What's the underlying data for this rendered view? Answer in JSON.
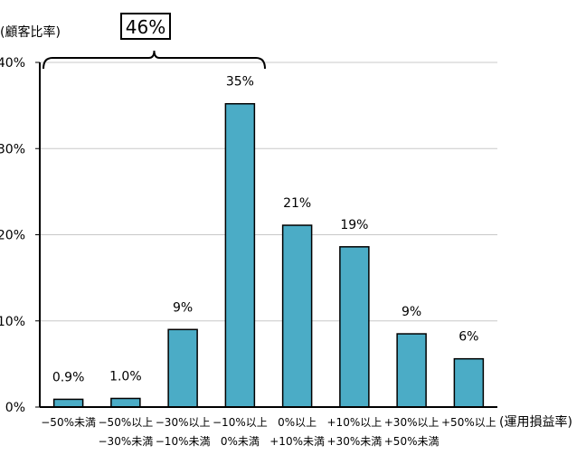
{
  "chart_data": {
    "type": "bar",
    "ylabel": "(顧客比率)",
    "xlabel": "(運用損益率)",
    "ylim": [
      0,
      40
    ],
    "yticks": [
      "0%",
      "10%",
      "20%",
      "30%",
      "40%"
    ],
    "categories": [
      [
        "−50%未満",
        ""
      ],
      [
        "−50%以上",
        "−30%未満"
      ],
      [
        "−30%以上",
        "−10%未満"
      ],
      [
        "−10%以上",
        "0%未満"
      ],
      [
        "0%以上",
        "+10%未満"
      ],
      [
        "+10%以上",
        "+30%未満"
      ],
      [
        "+30%以上",
        "+50%未満"
      ],
      [
        "+50%以上",
        ""
      ]
    ],
    "values": [
      0.9,
      1.0,
      9,
      35,
      21,
      19,
      9,
      6
    ],
    "display_values": [
      0.9,
      1.0,
      9.0,
      35.2,
      21.1,
      18.6,
      8.5,
      5.6
    ],
    "data_labels": [
      "0.9%",
      "1.0%",
      "9%",
      "35%",
      "21%",
      "19%",
      "9%",
      "6%"
    ],
    "bracket": {
      "label": "46%",
      "from_category": 0,
      "to_category": 3
    },
    "bar_color": "#4bacc6",
    "gridlines": true
  }
}
